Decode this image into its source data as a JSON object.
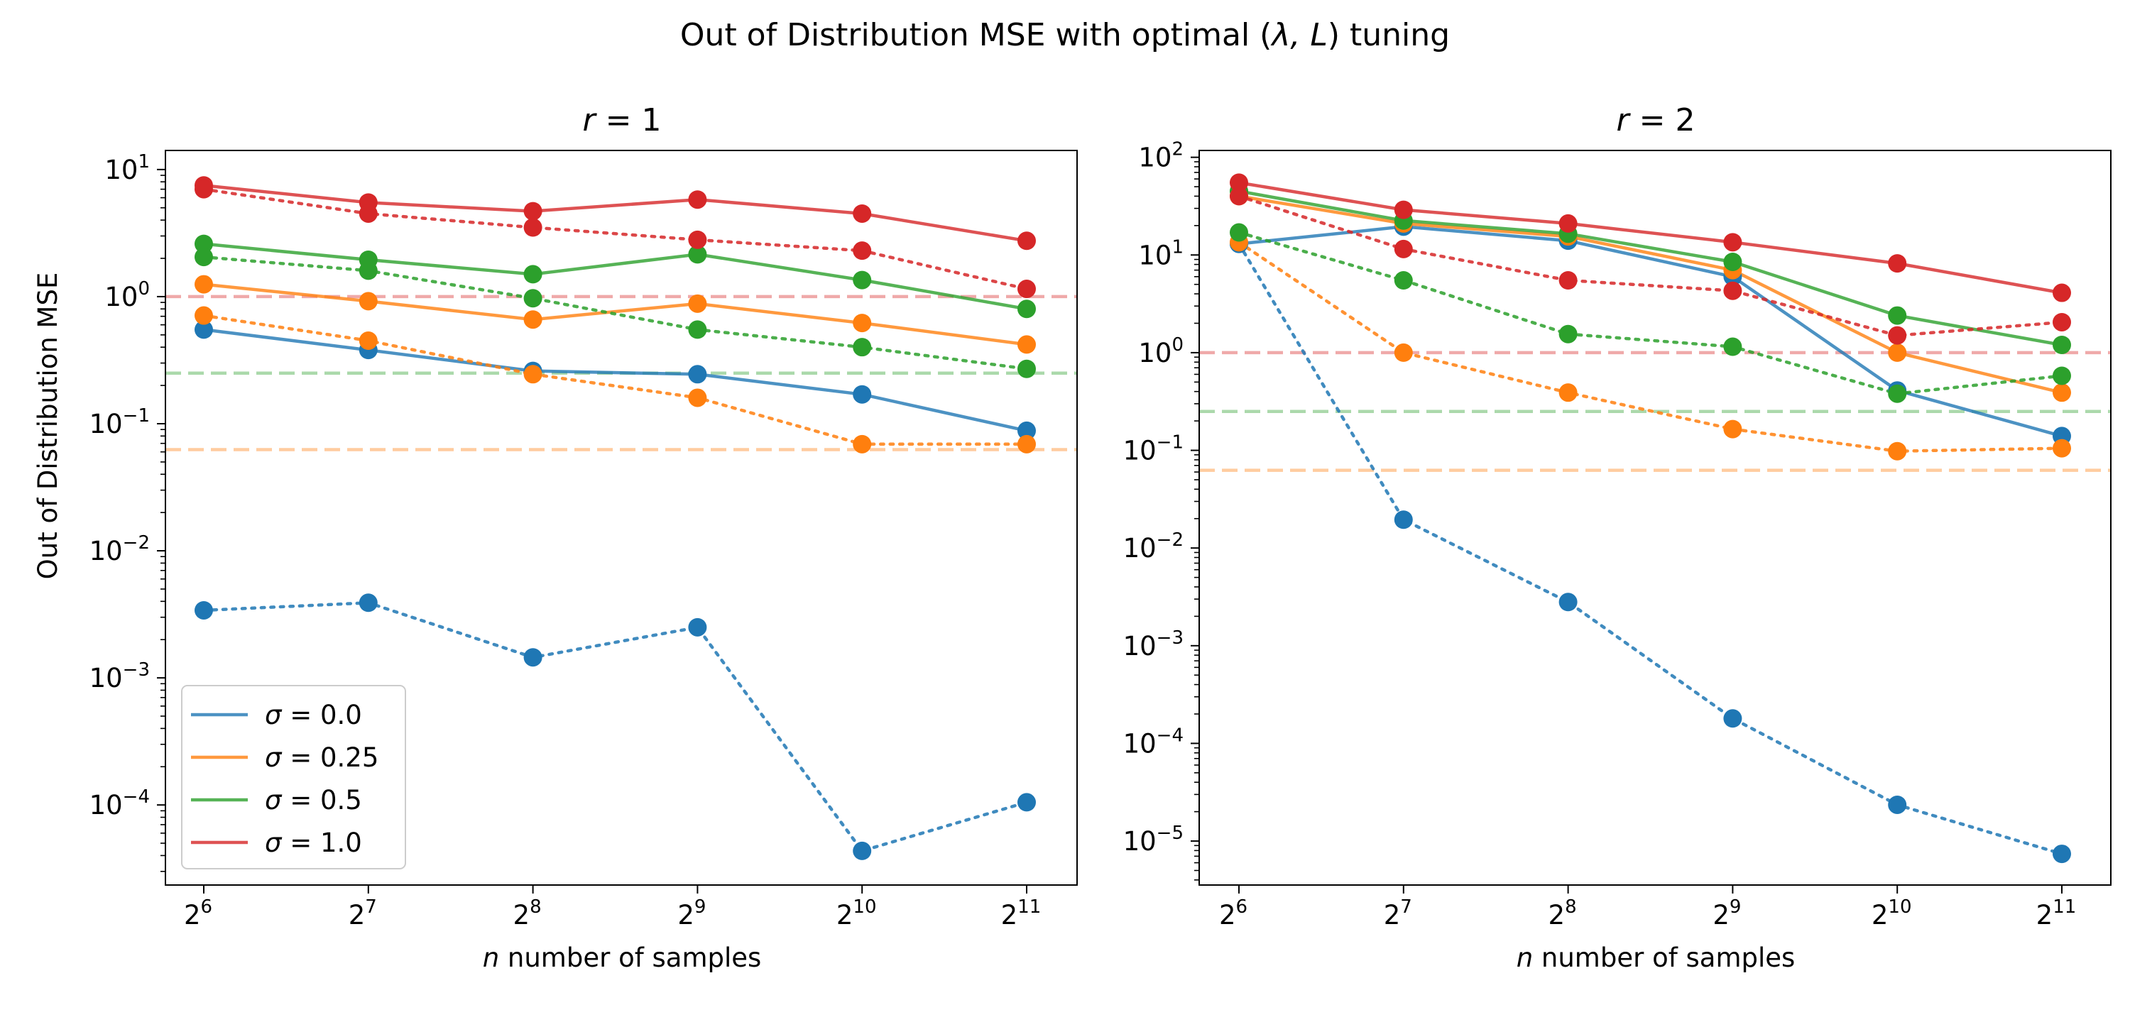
{
  "figure": {
    "suptitle_prefix": "Out of Distribution MSE with optimal (",
    "suptitle_math": "λ, L",
    "suptitle_suffix": ") tuning",
    "ylabel": "Out of Distribution MSE",
    "xlabel_var": "n",
    "xlabel_text": " number of samples"
  },
  "chart_data": [
    {
      "type": "line",
      "title": "r = 1",
      "title_var": "r",
      "title_val": " = 1",
      "xscale": "log2",
      "yscale": "log",
      "xticks": [
        6,
        7,
        8,
        9,
        10,
        11
      ],
      "yticks": [
        -4,
        -3,
        -2,
        -1,
        0,
        1
      ],
      "ylim_log10": [
        -4.63,
        1.15
      ],
      "x": [
        64,
        128,
        256,
        512,
        1024,
        2048
      ],
      "series": [
        {
          "sigma": "0.0",
          "style": "solid",
          "color": "#1f77b4",
          "values": [
            0.55,
            0.38,
            0.26,
            0.245,
            0.17,
            0.088
          ]
        },
        {
          "sigma": "0.0",
          "style": "dotted",
          "color": "#1f77b4",
          "values": [
            0.0034,
            0.0039,
            0.00145,
            0.0025,
            4.35e-05,
            0.000105
          ]
        },
        {
          "sigma": "0.25",
          "style": "solid",
          "color": "#ff7f0e",
          "values": [
            1.25,
            0.92,
            0.66,
            0.88,
            0.62,
            0.42
          ]
        },
        {
          "sigma": "0.25",
          "style": "dotted",
          "color": "#ff7f0e",
          "values": [
            0.71,
            0.45,
            0.245,
            0.16,
            0.069,
            0.069
          ]
        },
        {
          "sigma": "0.5",
          "style": "solid",
          "color": "#2ca02c",
          "values": [
            2.6,
            1.95,
            1.5,
            2.15,
            1.35,
            0.8
          ]
        },
        {
          "sigma": "0.5",
          "style": "dotted",
          "color": "#2ca02c",
          "values": [
            2.05,
            1.6,
            0.97,
            0.55,
            0.4,
            0.27
          ]
        },
        {
          "sigma": "1.0",
          "style": "solid",
          "color": "#d62728",
          "values": [
            7.5,
            5.5,
            4.7,
            5.8,
            4.5,
            2.75
          ]
        },
        {
          "sigma": "1.0",
          "style": "dotted",
          "color": "#d62728",
          "values": [
            7.0,
            4.5,
            3.5,
            2.8,
            2.3,
            1.15
          ]
        }
      ],
      "hlines": [
        {
          "y": 1.0,
          "color": "#d62728"
        },
        {
          "y": 0.25,
          "color": "#2ca02c"
        },
        {
          "y": 0.0625,
          "color": "#ff7f0e"
        }
      ],
      "legend": {
        "placement": "lower left",
        "entries": [
          {
            "var": "σ",
            "val": " = 0.0",
            "color": "#1f77b4"
          },
          {
            "var": "σ",
            "val": " = 0.25",
            "color": "#ff7f0e"
          },
          {
            "var": "σ",
            "val": " = 0.5",
            "color": "#2ca02c"
          },
          {
            "var": "σ",
            "val": " = 1.0",
            "color": "#d62728"
          }
        ]
      }
    },
    {
      "type": "line",
      "title": "r = 2",
      "title_var": "r",
      "title_val": " = 2",
      "xscale": "log2",
      "yscale": "log",
      "xticks": [
        6,
        7,
        8,
        9,
        10,
        11
      ],
      "yticks": [
        -5,
        -4,
        -3,
        -2,
        -1,
        0,
        1,
        2
      ],
      "ylim_log10": [
        -5.45,
        2.07
      ],
      "x": [
        64,
        128,
        256,
        512,
        1024,
        2048
      ],
      "series": [
        {
          "sigma": "0.0",
          "style": "solid",
          "color": "#1f77b4",
          "values": [
            13.0,
            19.5,
            14.0,
            6.0,
            0.41,
            0.14
          ]
        },
        {
          "sigma": "0.0",
          "style": "dotted",
          "color": "#1f77b4",
          "values": [
            13.0,
            0.0195,
            0.0028,
            0.00018,
            2.35e-05,
            7.4e-06
          ]
        },
        {
          "sigma": "0.25",
          "style": "solid",
          "color": "#ff7f0e",
          "values": [
            40.0,
            21.0,
            15.5,
            7.0,
            1.0,
            0.39
          ]
        },
        {
          "sigma": "0.25",
          "style": "dotted",
          "color": "#ff7f0e",
          "values": [
            13.5,
            1.0,
            0.39,
            0.165,
            0.098,
            0.105
          ]
        },
        {
          "sigma": "0.5",
          "style": "solid",
          "color": "#2ca02c",
          "values": [
            45.0,
            22.5,
            16.5,
            8.5,
            2.4,
            1.2
          ]
        },
        {
          "sigma": "0.5",
          "style": "dotted",
          "color": "#2ca02c",
          "values": [
            17.0,
            5.5,
            1.55,
            1.15,
            0.38,
            0.58
          ]
        },
        {
          "sigma": "1.0",
          "style": "solid",
          "color": "#d62728",
          "values": [
            55.0,
            29.0,
            21.0,
            13.5,
            8.2,
            4.1
          ]
        },
        {
          "sigma": "1.0",
          "style": "dotted",
          "color": "#d62728",
          "values": [
            40.0,
            11.5,
            5.5,
            4.3,
            1.5,
            2.05
          ]
        }
      ],
      "hlines": [
        {
          "y": 1.0,
          "color": "#d62728"
        },
        {
          "y": 0.25,
          "color": "#2ca02c"
        },
        {
          "y": 0.0625,
          "color": "#ff7f0e"
        }
      ]
    }
  ]
}
